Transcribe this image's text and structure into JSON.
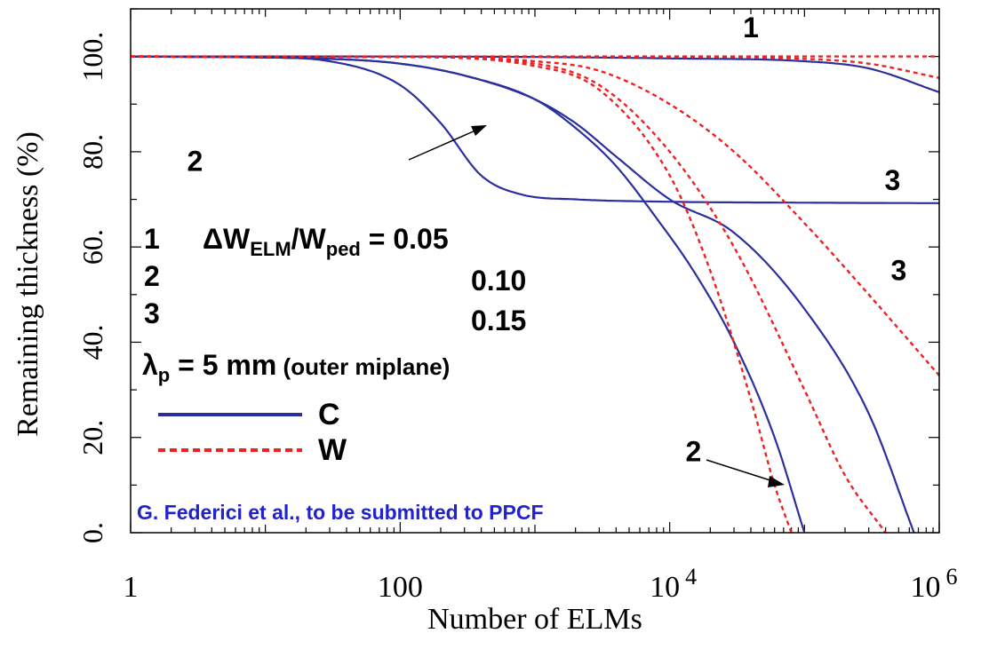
{
  "chart_data": {
    "type": "line",
    "x_scale": "log",
    "xlim": [
      1,
      1000000
    ],
    "ylim": [
      0,
      110
    ],
    "xlabel": "Number of ELMs",
    "ylabel": "Remaining thickness (%)",
    "x_ticks": [
      {
        "value": 1,
        "base": "1",
        "exp": ""
      },
      {
        "value": 100,
        "base": "100",
        "exp": ""
      },
      {
        "value": 10000,
        "base": "10",
        "exp": "4"
      },
      {
        "value": 1000000,
        "base": "10",
        "exp": "6"
      }
    ],
    "y_ticks": [
      {
        "value": 0,
        "label": "0."
      },
      {
        "value": 20,
        "label": "20."
      },
      {
        "value": 40,
        "label": "40."
      },
      {
        "value": 60,
        "label": "60."
      },
      {
        "value": 80,
        "label": "80."
      },
      {
        "value": 100,
        "label": "100."
      }
    ],
    "colors": {
      "C": "#2b2f9e",
      "W": "#ee2222",
      "source": "#2222cc"
    },
    "series": [
      {
        "case": "1",
        "material": "C",
        "x": [
          1,
          30,
          1000,
          10000,
          100000,
          300000,
          1000000
        ],
        "y": [
          100,
          100,
          99.9,
          99.6,
          99,
          97.5,
          92.5
        ]
      },
      {
        "case": "2",
        "material": "C",
        "x": [
          1,
          10,
          30,
          100,
          200,
          400,
          800,
          2000,
          10000,
          100000,
          1000000
        ],
        "y": [
          100,
          99.8,
          99,
          94,
          86,
          75,
          71,
          70,
          69.5,
          69.3,
          69.2
        ]
      },
      {
        "case": "3",
        "material": "C",
        "x": [
          1,
          30,
          100,
          300,
          1000,
          2000,
          4000,
          8000,
          15000,
          30000,
          60000,
          100000
        ],
        "y": [
          100,
          99.5,
          98.5,
          96,
          91,
          85,
          77,
          66,
          55,
          40,
          20,
          0
        ]
      },
      {
        "case": "3b",
        "material": "C",
        "x": [
          1,
          30,
          100,
          300,
          1000,
          2000,
          4000,
          10000,
          30000,
          100000,
          300000,
          650000
        ],
        "y": [
          100,
          99.5,
          98.5,
          96,
          91,
          86,
          79,
          70,
          63,
          47,
          25,
          0
        ]
      },
      {
        "case": "1",
        "material": "W",
        "x": [
          1,
          1000000
        ],
        "y": [
          100,
          100
        ]
      },
      {
        "case": "1b",
        "material": "W",
        "x": [
          1,
          10000,
          100000,
          300000,
          1000000
        ],
        "y": [
          100,
          99.9,
          99.5,
          98.5,
          95.5
        ]
      },
      {
        "case": "2",
        "material": "W",
        "x": [
          1,
          100,
          1000,
          3000,
          10000,
          20000,
          40000,
          60000,
          80000
        ],
        "y": [
          100,
          99.9,
          98,
          93,
          75,
          55,
          28,
          10,
          0
        ]
      },
      {
        "case": "2b",
        "material": "W",
        "x": [
          1,
          100,
          1000,
          3000,
          10000,
          30000,
          100000,
          200000,
          400000
        ],
        "y": [
          100,
          99.9,
          98.5,
          94,
          80,
          60,
          30,
          12,
          0
        ]
      },
      {
        "case": "3",
        "material": "W",
        "x": [
          1,
          100,
          1000,
          3000,
          10000,
          30000,
          100000,
          300000,
          1000000
        ],
        "y": [
          100,
          99.9,
          99,
          97,
          90,
          80,
          65,
          50,
          33
        ]
      }
    ],
    "annotations": [
      {
        "text": "1",
        "at": [
          40000,
          104
        ]
      },
      {
        "text": "2",
        "at": [
          3,
          76
        ]
      },
      {
        "text": "3",
        "at": [
          450000,
          72
        ]
      },
      {
        "text": "3",
        "at": [
          500000,
          53
        ]
      },
      {
        "text": "2",
        "at": [
          15000,
          15
        ]
      }
    ],
    "legend_block": {
      "line1_num": "1",
      "delta": "ΔW",
      "sub1": "ELM",
      "slash": "/W",
      "sub2": "ped",
      "eq_value": " = 0.05",
      "line2_num": "2",
      "line2_value": "0.10",
      "line3_num": "3",
      "line3_value": "0.15",
      "lambda": "λ",
      "lambda_sub": "p",
      "lambda_value": " = 5 mm",
      "lambda_note": " (outer miplane)",
      "C_label": "C",
      "W_label": "W"
    },
    "source_note": "G. Federici et al., to be submitted to PPCF"
  }
}
